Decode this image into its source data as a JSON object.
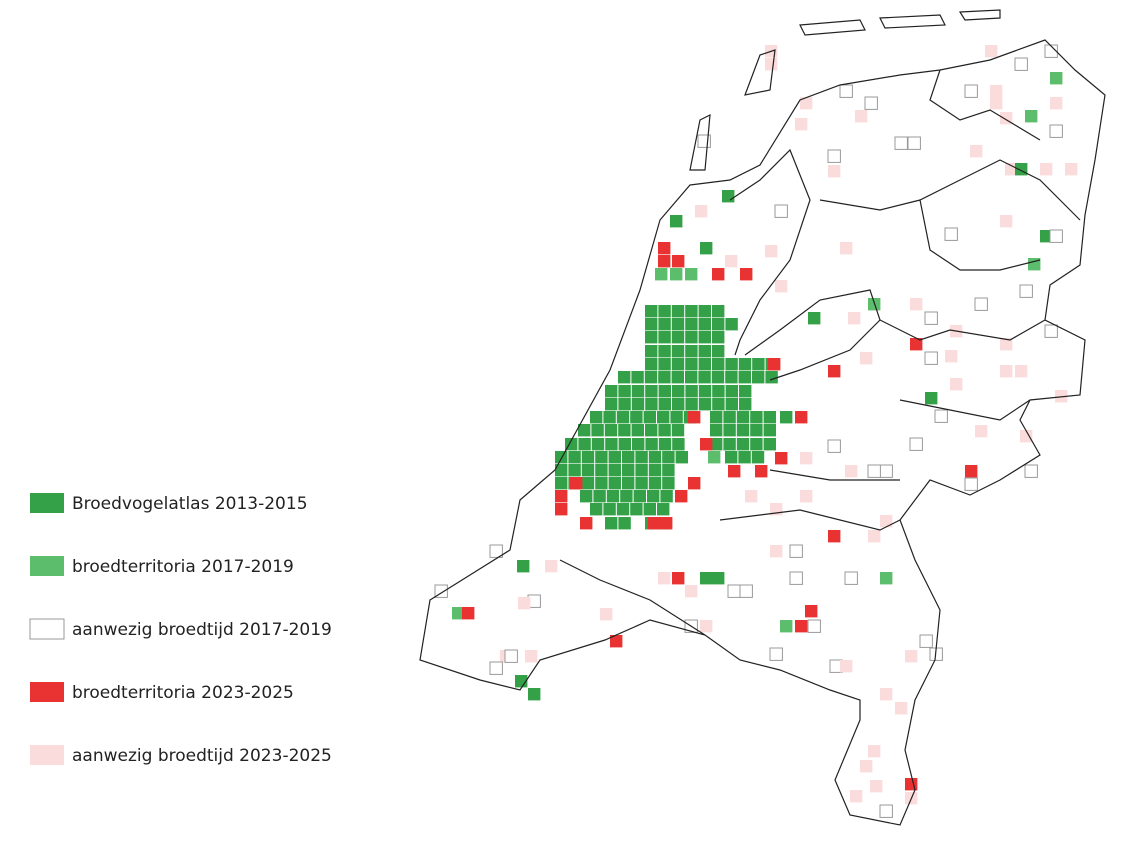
{
  "legend": {
    "items": [
      {
        "label": "Broedvogelatlas 2013-2015",
        "color": "#34a148"
      },
      {
        "label": "broedterritoria 2017-2019",
        "color": "#5cbd6c"
      },
      {
        "label": "aanwezig broedtijd 2017-2019",
        "color": "#ffffff"
      },
      {
        "label": "broedterritoria 2023-2025",
        "color": "#e93333"
      },
      {
        "label": "aanwezig broedtijd 2023-2025",
        "color": "#fbdcdc"
      }
    ]
  }
}
